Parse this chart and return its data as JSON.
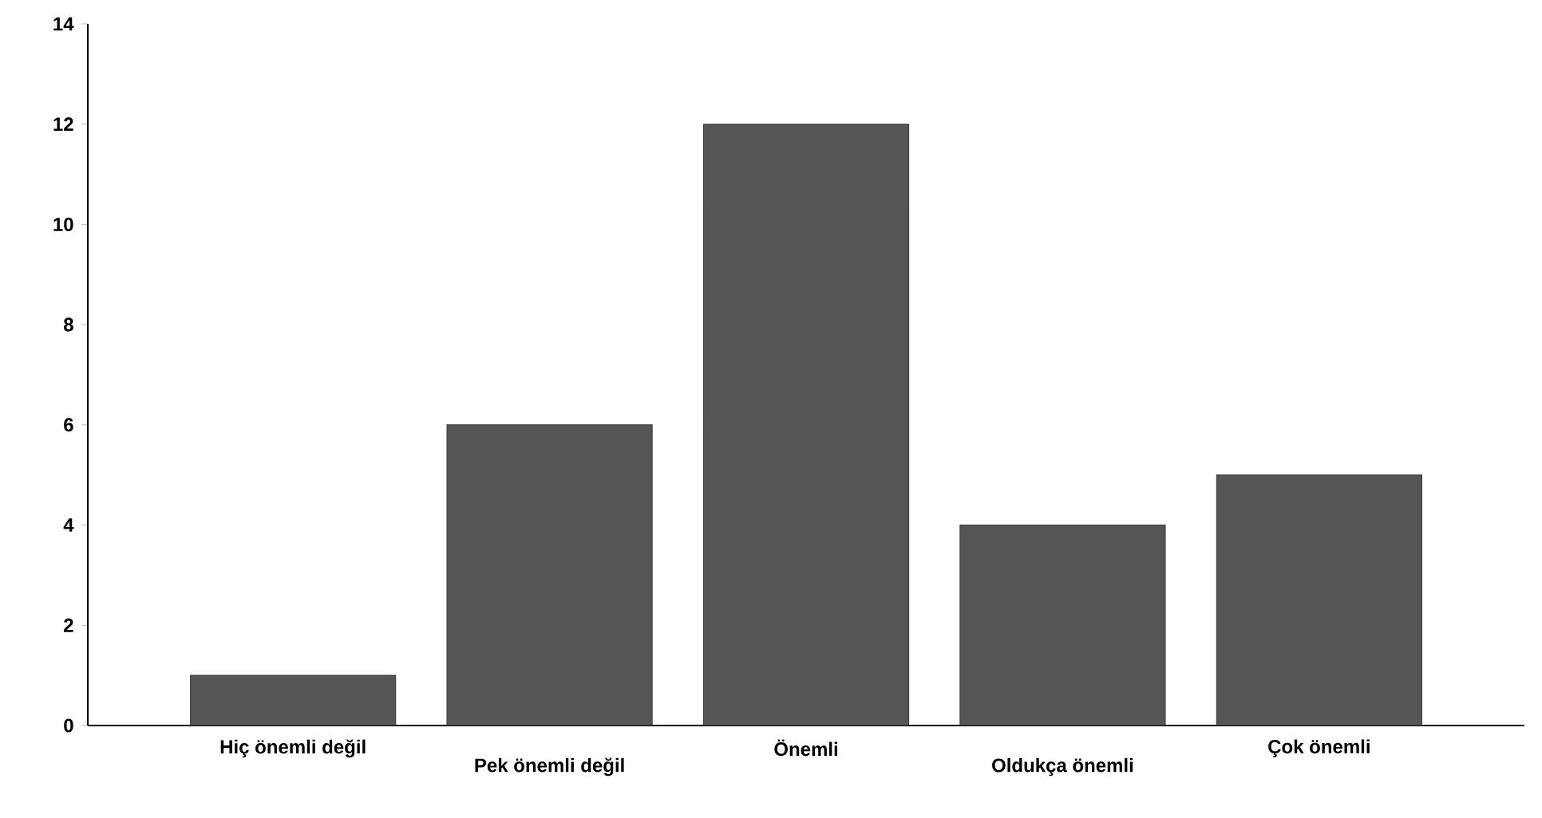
{
  "chart_data": {
    "type": "bar",
    "categories": [
      "Hiç önemli değil",
      "Pek önemli değil",
      "Önemli",
      "Oldukça önemli",
      "Çok önemli"
    ],
    "values": [
      1,
      6,
      12,
      4,
      5
    ],
    "color": "#555555",
    "ylim": [
      0,
      14
    ],
    "yticks": [
      0,
      2,
      4,
      6,
      8,
      10,
      12,
      14
    ],
    "grid": false
  }
}
